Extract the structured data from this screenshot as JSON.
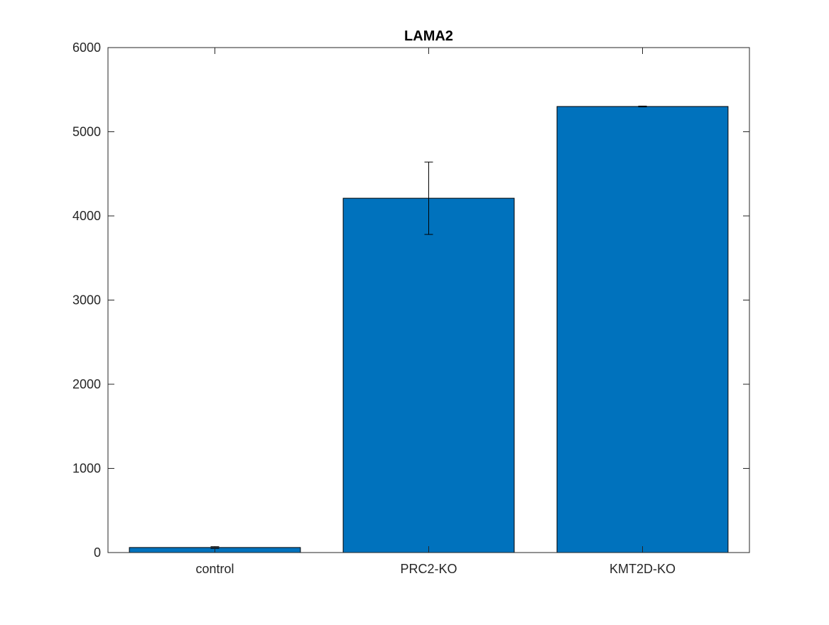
{
  "chart_data": {
    "type": "bar",
    "title": "LAMA2",
    "xlabel": "",
    "ylabel": "",
    "categories": [
      "control",
      "PRC2-KO",
      "KMT2D-KO"
    ],
    "values": [
      60,
      4210,
      5300
    ],
    "error_low": [
      50,
      3780,
      5295
    ],
    "error_high": [
      70,
      4640,
      5305
    ],
    "ylim": [
      0,
      6000
    ],
    "yticks": [
      0,
      1000,
      2000,
      3000,
      4000,
      5000,
      6000
    ],
    "ytick_labels": [
      "0",
      "1000",
      "2000",
      "3000",
      "4000",
      "5000",
      "6000"
    ],
    "grid": false,
    "legend": "none",
    "bar_color": "#0072bd",
    "edge_color": "#000000"
  }
}
